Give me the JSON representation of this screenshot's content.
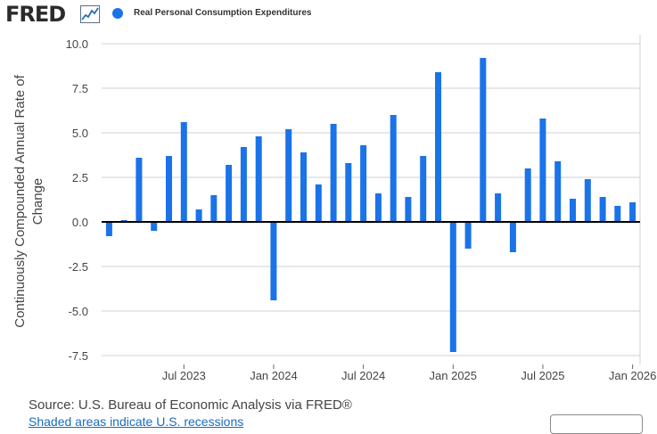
{
  "brand": {
    "logo_text": "FRED",
    "logo_icon": "trend-line-icon"
  },
  "colors": {
    "series": "#1a73e8",
    "grid": "#d0d0d0",
    "zero_line": "#000000",
    "text": "#333333"
  },
  "source_text": "Source: U.S. Bureau of Economic Analysis via FRED®",
  "footer_link_text": "Shaded areas indicate U.S. recessions",
  "chart_data": {
    "type": "bar",
    "title": "",
    "legend": [
      "Real Personal Consumption Expenditures"
    ],
    "legend_position": "top-left",
    "xlabel": "",
    "ylabel": "Continuously Compounded Annual Rate of Change",
    "ylim": [
      -8.0,
      10.5
    ],
    "yticks": [
      10.0,
      7.5,
      5.0,
      2.5,
      0.0,
      -2.5,
      -5.0,
      -7.5
    ],
    "ytick_labels": [
      "10.0",
      "7.5",
      "5.0",
      "2.5",
      "0.0",
      "-2.5",
      "-5.0",
      "-7.5"
    ],
    "xticks": [
      {
        "label": "Jul 2023",
        "index": 5
      },
      {
        "label": "Jan 2024",
        "index": 11
      },
      {
        "label": "Jul 2024",
        "index": 17
      },
      {
        "label": "Jan 2025",
        "index": 23
      },
      {
        "label": "Jul 2025",
        "index": 29
      },
      {
        "label": "Jan 2026",
        "index": 35
      }
    ],
    "grid": true,
    "categories": [
      "2023-02",
      "2023-03",
      "2023-04",
      "2023-05",
      "2023-06",
      "2023-07",
      "2023-08",
      "2023-09",
      "2023-10",
      "2023-11",
      "2023-12",
      "2024-01",
      "2024-02",
      "2024-03",
      "2024-04",
      "2024-05",
      "2024-06",
      "2024-07",
      "2024-08",
      "2024-09",
      "2024-10",
      "2024-11",
      "2024-12",
      "2025-01",
      "2025-02",
      "2025-03",
      "2025-04",
      "2025-05",
      "2025-06",
      "2025-07",
      "2025-08",
      "2025-09",
      "2025-10",
      "2025-11",
      "2025-12",
      "2026-01"
    ],
    "series": [
      {
        "name": "Real Personal Consumption Expenditures",
        "values": [
          -0.8,
          0.1,
          3.6,
          -0.5,
          3.7,
          5.6,
          0.7,
          1.5,
          3.2,
          4.2,
          4.8,
          -4.4,
          5.2,
          3.9,
          2.1,
          5.5,
          3.3,
          4.3,
          1.6,
          6.0,
          1.4,
          3.7,
          8.4,
          -7.3,
          -1.5,
          9.2,
          1.6,
          -1.7,
          3.0,
          5.8,
          3.4,
          1.3,
          2.4,
          1.4,
          0.9,
          1.1
        ]
      }
    ]
  }
}
